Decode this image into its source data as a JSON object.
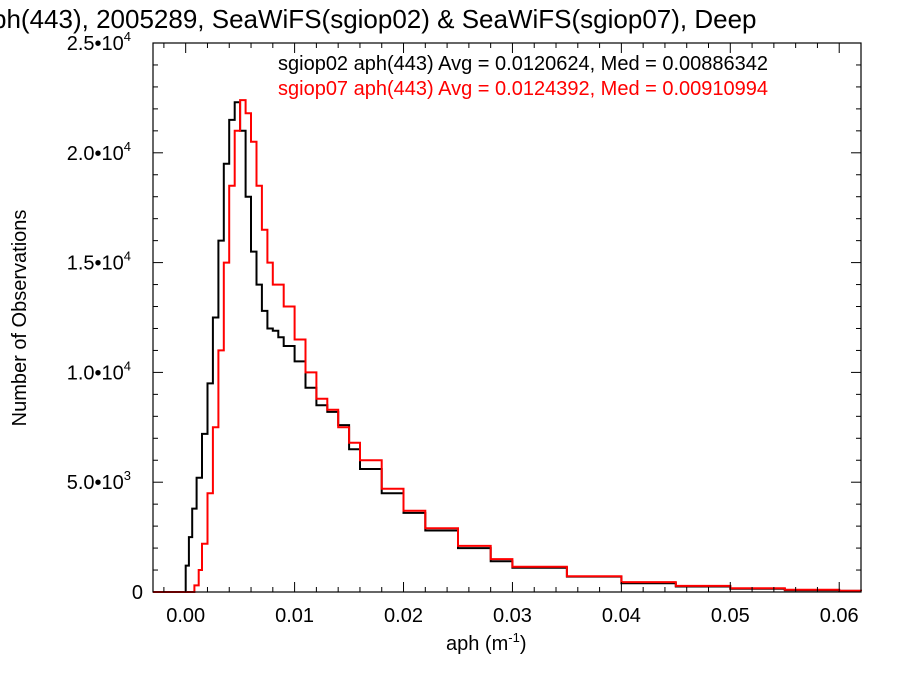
{
  "chart_data": {
    "type": "line",
    "title": "ph(443), 2005289, SeaWiFS(sgiop02) & SeaWiFS(sgiop07), Deep",
    "xlabel_main": "aph (m",
    "xlabel_sup": "-1",
    "xlabel_end": ")",
    "ylabel": "Number of Observations",
    "xlim": [
      -0.003,
      0.062
    ],
    "ylim": [
      0,
      25000
    ],
    "x_ticks": [
      {
        "value": 0.0,
        "label": "0.00"
      },
      {
        "value": 0.01,
        "label": "0.01"
      },
      {
        "value": 0.02,
        "label": "0.02"
      },
      {
        "value": 0.03,
        "label": "0.03"
      },
      {
        "value": 0.04,
        "label": "0.04"
      },
      {
        "value": 0.05,
        "label": "0.05"
      },
      {
        "value": 0.06,
        "label": "0.06"
      }
    ],
    "y_ticks": [
      {
        "value": 0,
        "label": "0",
        "sup": ""
      },
      {
        "value": 5000,
        "label": "5.0•10",
        "sup": "3"
      },
      {
        "value": 10000,
        "label": "1.0•10",
        "sup": "4"
      },
      {
        "value": 15000,
        "label": "1.5•10",
        "sup": "4"
      },
      {
        "value": 20000,
        "label": "2.0•10",
        "sup": "4"
      },
      {
        "value": 25000,
        "label": "2.5•10",
        "sup": "4"
      }
    ],
    "legend_placement": "top-right",
    "series": [
      {
        "name": "sgiop02 aph(443) Avg = 0.0120624, Med = 0.00886342",
        "color": "#000000",
        "x": [
          -0.003,
          -0.0002,
          0.0,
          0.0003,
          0.0006,
          0.001,
          0.0015,
          0.002,
          0.0025,
          0.003,
          0.0035,
          0.004,
          0.0045,
          0.005,
          0.0055,
          0.006,
          0.0065,
          0.007,
          0.0075,
          0.008,
          0.0085,
          0.009,
          0.01,
          0.011,
          0.012,
          0.013,
          0.014,
          0.015,
          0.016,
          0.018,
          0.02,
          0.022,
          0.025,
          0.028,
          0.03,
          0.035,
          0.04,
          0.045,
          0.05,
          0.055,
          0.06,
          0.062
        ],
        "y": [
          0,
          0,
          1200,
          2500,
          3800,
          5200,
          7200,
          9500,
          12500,
          16000,
          19500,
          21500,
          22300,
          21000,
          18000,
          15500,
          14000,
          12800,
          12000,
          11900,
          11600,
          11200,
          10500,
          9300,
          8500,
          8200,
          7600,
          6500,
          5600,
          4500,
          3600,
          2800,
          2000,
          1400,
          1100,
          700,
          400,
          250,
          150,
          80,
          50,
          40
        ]
      },
      {
        "name": "sgiop07 aph(443) Avg = 0.0124392, Med = 0.00910994",
        "color": "#ff0000",
        "x": [
          -0.003,
          0.0005,
          0.0008,
          0.0012,
          0.0015,
          0.002,
          0.0025,
          0.003,
          0.0035,
          0.004,
          0.0045,
          0.005,
          0.0055,
          0.006,
          0.0065,
          0.007,
          0.0075,
          0.008,
          0.009,
          0.01,
          0.011,
          0.012,
          0.013,
          0.014,
          0.015,
          0.016,
          0.018,
          0.02,
          0.022,
          0.025,
          0.028,
          0.03,
          0.035,
          0.04,
          0.045,
          0.05,
          0.055,
          0.06,
          0.062
        ],
        "y": [
          0,
          0,
          300,
          1000,
          2200,
          4500,
          7500,
          11000,
          15000,
          18500,
          21000,
          22400,
          21800,
          20500,
          18500,
          16500,
          15000,
          14000,
          13000,
          11500,
          10000,
          8800,
          8300,
          7500,
          6800,
          6000,
          4700,
          3700,
          2900,
          2100,
          1500,
          1150,
          720,
          450,
          280,
          170,
          100,
          60,
          45
        ]
      }
    ]
  }
}
